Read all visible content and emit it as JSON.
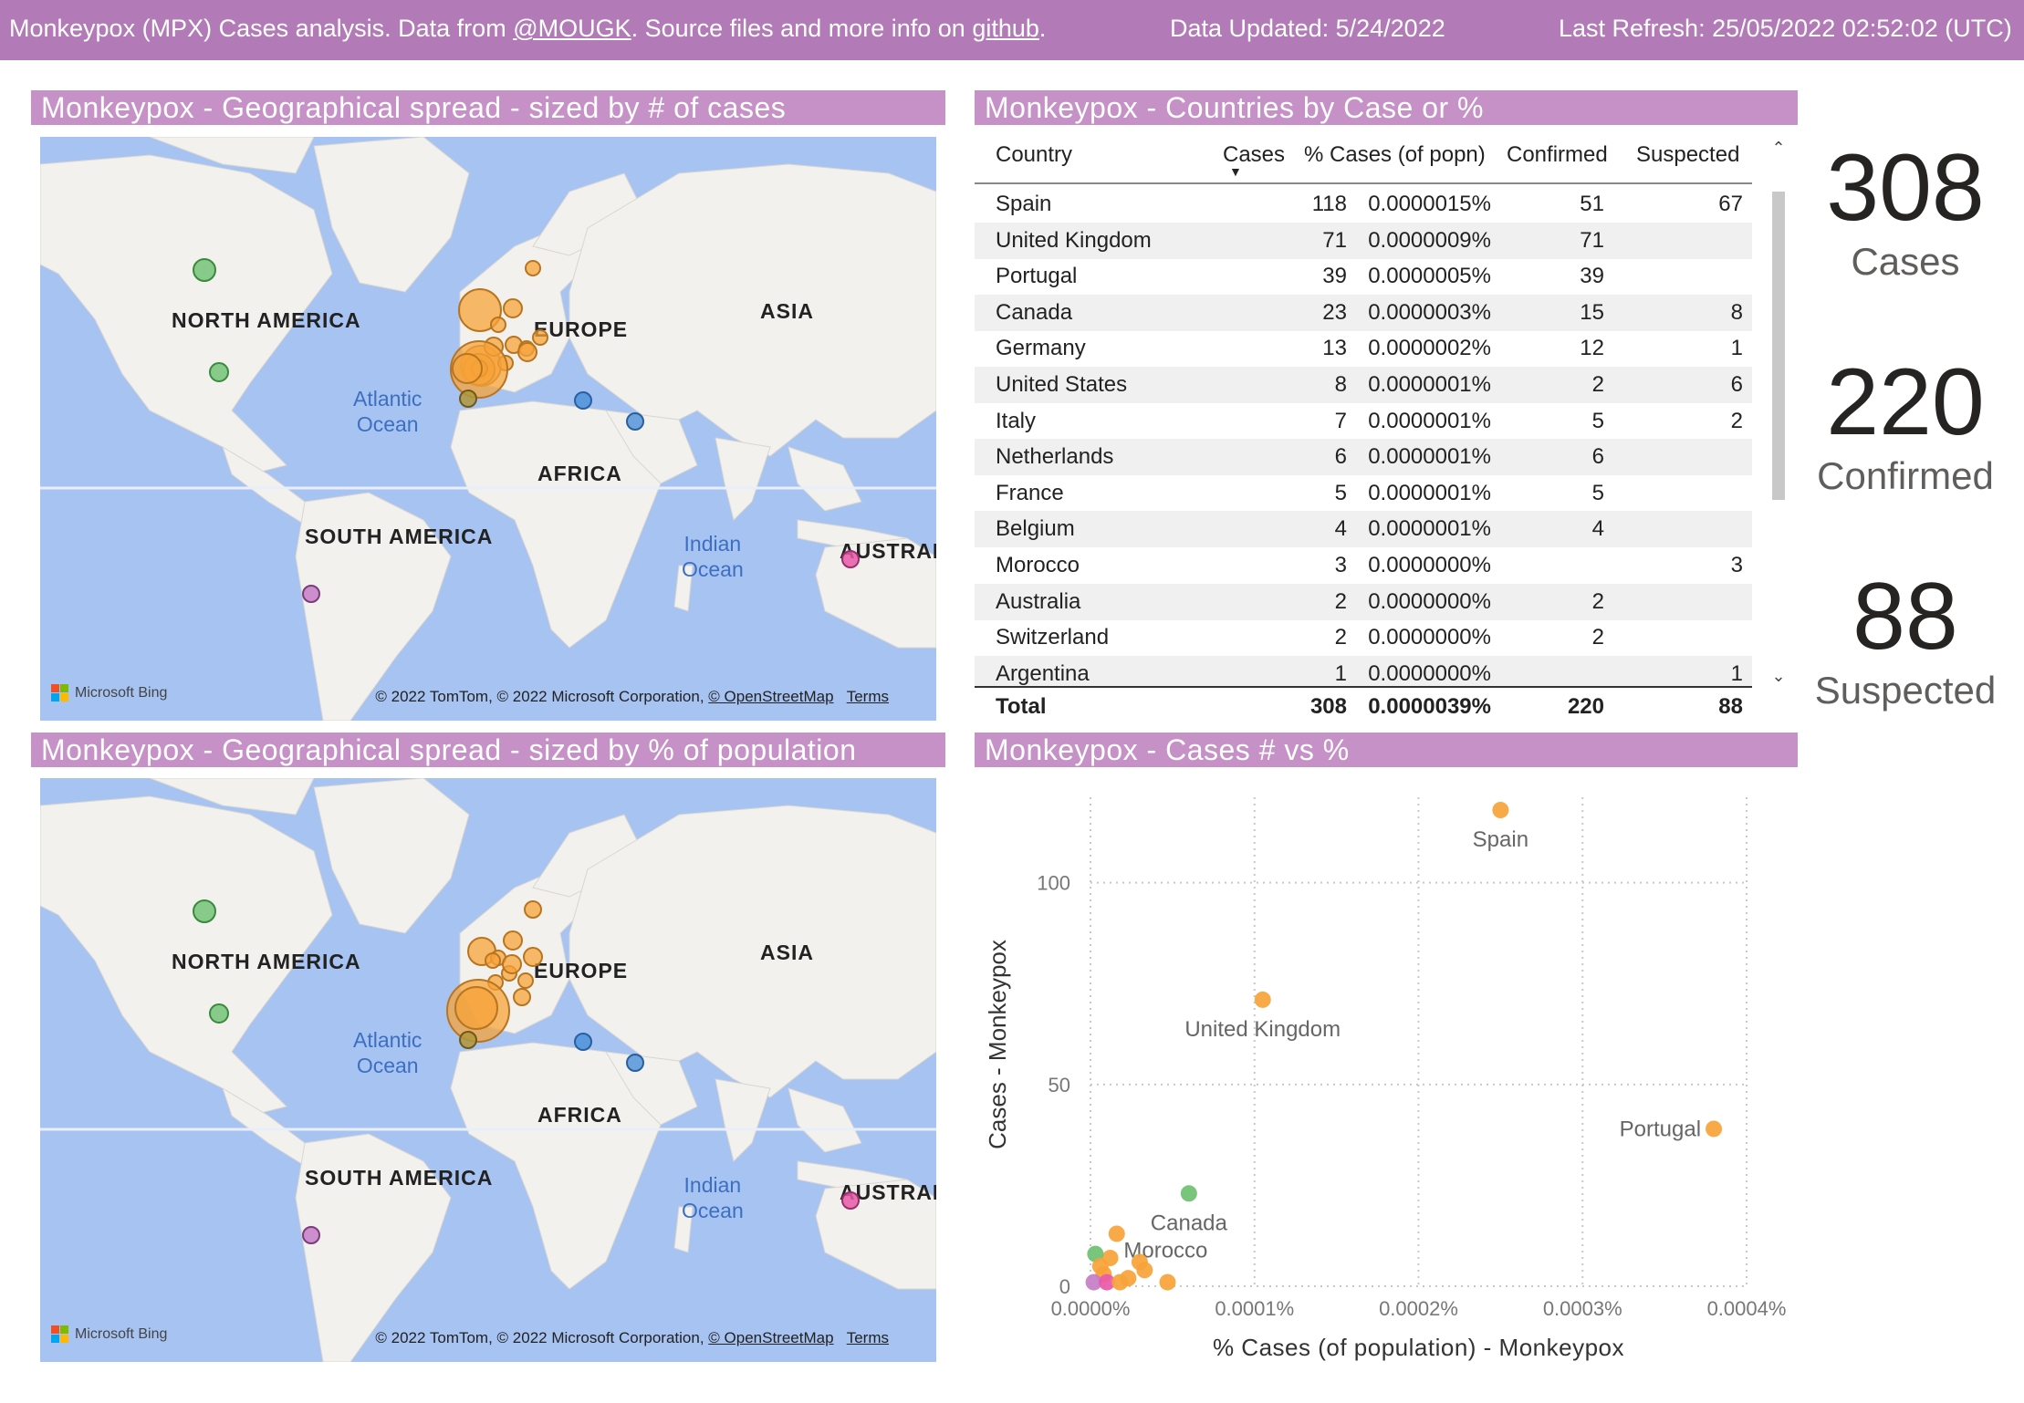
{
  "header": {
    "text_before": "Monkeypox (MPX) Cases analysis. Data from ",
    "link_mougk": "@MOUGK",
    "text_middle": ". Source files and more info on ",
    "link_github": "github",
    "text_end": ".",
    "data_updated": "Data Updated: 5/24/2022",
    "last_refresh": "Last Refresh: 25/05/2022 02:52:02 (UTC)"
  },
  "map1": {
    "title": "Monkeypox - Geographical spread - sized by # of cases",
    "labels": {
      "north_america": "NORTH AMERICA",
      "europe": "EUROPE",
      "asia": "ASIA",
      "africa": "AFRICA",
      "south_america": "SOUTH AMERICA",
      "australia": "AUSTRAL",
      "atlantic_line1": "Atlantic",
      "atlantic_line2": "Ocean",
      "indian_line1": "Indian",
      "indian_line2": "Ocean"
    },
    "bing": "Microsoft Bing",
    "copyright": "© 2022 TomTom, © 2022 Microsoft Corporation, ",
    "osm": "© OpenStreetMap",
    "terms": "Terms"
  },
  "map2": {
    "title": "Monkeypox - Geographical spread - sized by % of population",
    "labels": {
      "north_america": "NORTH AMERICA",
      "europe": "EUROPE",
      "asia": "ASIA",
      "africa": "AFRICA",
      "south_america": "SOUTH AMERICA",
      "australia": "AUSTRAL",
      "atlantic_line1": "Atlantic",
      "atlantic_line2": "Ocean",
      "indian_line1": "Indian",
      "indian_line2": "Ocean"
    },
    "bing": "Microsoft Bing",
    "copyright": "© 2022 TomTom, © 2022 Microsoft Corporation, ",
    "osm": "© OpenStreetMap",
    "terms": "Terms"
  },
  "table": {
    "title": "Monkeypox - Countries by Case or %",
    "columns": [
      "Country",
      "Cases",
      "% Cases (of popn)",
      "Confirmed",
      "Suspected"
    ],
    "sort_column": "Cases",
    "rows": [
      [
        "Spain",
        "118",
        "0.0000015%",
        "51",
        "67"
      ],
      [
        "United Kingdom",
        "71",
        "0.0000009%",
        "71",
        ""
      ],
      [
        "Portugal",
        "39",
        "0.0000005%",
        "39",
        ""
      ],
      [
        "Canada",
        "23",
        "0.0000003%",
        "15",
        "8"
      ],
      [
        "Germany",
        "13",
        "0.0000002%",
        "12",
        "1"
      ],
      [
        "United States",
        "8",
        "0.0000001%",
        "2",
        "6"
      ],
      [
        "Italy",
        "7",
        "0.0000001%",
        "5",
        "2"
      ],
      [
        "Netherlands",
        "6",
        "0.0000001%",
        "6",
        ""
      ],
      [
        "France",
        "5",
        "0.0000001%",
        "5",
        ""
      ],
      [
        "Belgium",
        "4",
        "0.0000001%",
        "4",
        ""
      ],
      [
        "Morocco",
        "3",
        "0.0000000%",
        "",
        "3"
      ],
      [
        "Australia",
        "2",
        "0.0000000%",
        "2",
        ""
      ],
      [
        "Switzerland",
        "2",
        "0.0000000%",
        "2",
        ""
      ],
      [
        "Argentina",
        "1",
        "0.0000000%",
        "",
        "1"
      ]
    ],
    "total": [
      "Total",
      "308",
      "0.0000039%",
      "220",
      "88"
    ]
  },
  "kpis": [
    {
      "value": "308",
      "label": "Cases"
    },
    {
      "value": "220",
      "label": "Confirmed"
    },
    {
      "value": "88",
      "label": "Suspected"
    }
  ],
  "scatter": {
    "title": "Monkeypox - Cases # vs %",
    "xlabel": "% Cases (of population) - Monkeypox",
    "ylabel": "Cases - Monkeypox",
    "xticks": [
      "0.0000%",
      "0.0001%",
      "0.0002%",
      "0.0003%",
      "0.0004%"
    ],
    "yticks": [
      "0",
      "50",
      "100"
    ]
  },
  "colors": {
    "header": "#b27bb7",
    "panel_title": "#c691c6",
    "orange": "#f7a33a",
    "green": "#6cc070",
    "blue": "#4a90d9",
    "purple": "#c77dc7",
    "pink": "#e85aa8",
    "ocean": "#a7c3f2",
    "land": "#f2f1ee"
  },
  "chart_data": {
    "type": "scatter",
    "title": "Monkeypox - Cases # vs %",
    "xlabel": "% Cases (of population) - Monkeypox",
    "ylabel": "Cases - Monkeypox",
    "xlim": [
      0,
      0.0004
    ],
    "ylim": [
      0,
      118
    ],
    "grid": true,
    "points": [
      {
        "label": "Spain",
        "x": 0.00025,
        "y": 118,
        "color": "#f7a33a"
      },
      {
        "label": "United Kingdom",
        "x": 0.000105,
        "y": 71,
        "color": "#f7a33a"
      },
      {
        "label": "Portugal",
        "x": 0.00038,
        "y": 39,
        "color": "#f7a33a"
      },
      {
        "label": "Canada",
        "x": 6e-05,
        "y": 23,
        "color": "#6cc070"
      },
      {
        "label": "Morocco",
        "x": 8e-06,
        "y": 3,
        "color": "#f7a33a"
      },
      {
        "label": "",
        "x": 1.6e-05,
        "y": 13,
        "color": "#f7a33a"
      },
      {
        "label": "",
        "x": 1.2e-05,
        "y": 7,
        "color": "#f7a33a"
      },
      {
        "label": "",
        "x": 3e-05,
        "y": 6,
        "color": "#f7a33a"
      },
      {
        "label": "",
        "x": 3.3e-05,
        "y": 4,
        "color": "#f7a33a"
      },
      {
        "label": "",
        "x": 2.3e-05,
        "y": 2,
        "color": "#f7a33a"
      },
      {
        "label": "",
        "x": 4.7e-05,
        "y": 1,
        "color": "#f7a33a"
      },
      {
        "label": "",
        "x": 3e-06,
        "y": 8,
        "color": "#6cc070"
      },
      {
        "label": "",
        "x": 6e-06,
        "y": 5,
        "color": "#f7a33a"
      },
      {
        "label": "",
        "x": 2e-06,
        "y": 1,
        "color": "#c77dc7"
      },
      {
        "label": "",
        "x": 1e-05,
        "y": 1,
        "color": "#e85aa8"
      },
      {
        "label": "",
        "x": 1.8e-05,
        "y": 1,
        "color": "#f7a33a"
      }
    ]
  }
}
